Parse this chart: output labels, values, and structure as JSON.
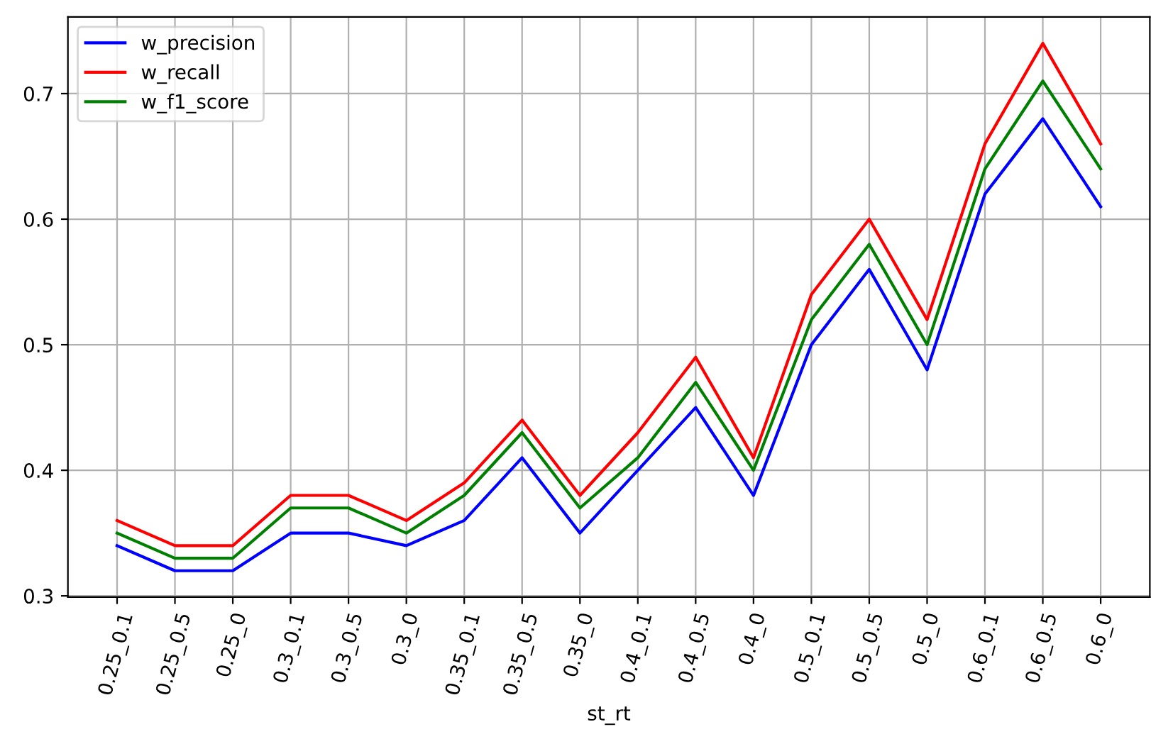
{
  "chart_data": {
    "type": "line",
    "xlabel": "st_rt",
    "categories": [
      "0.25_0.1",
      "0.25_0.5",
      "0.25_0",
      "0.3_0.1",
      "0.3_0.5",
      "0.3_0",
      "0.35_0.1",
      "0.35_0.5",
      "0.35_0",
      "0.4_0.1",
      "0.4_0.5",
      "0.4_0",
      "0.5_0.1",
      "0.5_0.5",
      "0.5_0",
      "0.6_0.1",
      "0.6_0.5",
      "0.6_0"
    ],
    "series": [
      {
        "name": "w_precision",
        "color": "#0000ff",
        "values": [
          0.34,
          0.32,
          0.32,
          0.35,
          0.35,
          0.34,
          0.36,
          0.41,
          0.35,
          0.4,
          0.45,
          0.38,
          0.5,
          0.56,
          0.48,
          0.62,
          0.68,
          0.61
        ]
      },
      {
        "name": "w_recall",
        "color": "#ff0000",
        "values": [
          0.36,
          0.34,
          0.34,
          0.38,
          0.38,
          0.36,
          0.39,
          0.44,
          0.38,
          0.43,
          0.49,
          0.41,
          0.54,
          0.6,
          0.52,
          0.66,
          0.74,
          0.66
        ]
      },
      {
        "name": "w_f1_score",
        "color": "#008000",
        "values": [
          0.35,
          0.33,
          0.33,
          0.37,
          0.37,
          0.35,
          0.38,
          0.43,
          0.37,
          0.41,
          0.47,
          0.4,
          0.52,
          0.58,
          0.5,
          0.64,
          0.71,
          0.64
        ]
      }
    ],
    "ylim": [
      0.299,
      0.761
    ],
    "yticks": [
      0.3,
      0.4,
      0.5,
      0.6,
      0.7
    ],
    "grid": true,
    "legend": "top left",
    "marker": "none",
    "line_style": "solid"
  }
}
